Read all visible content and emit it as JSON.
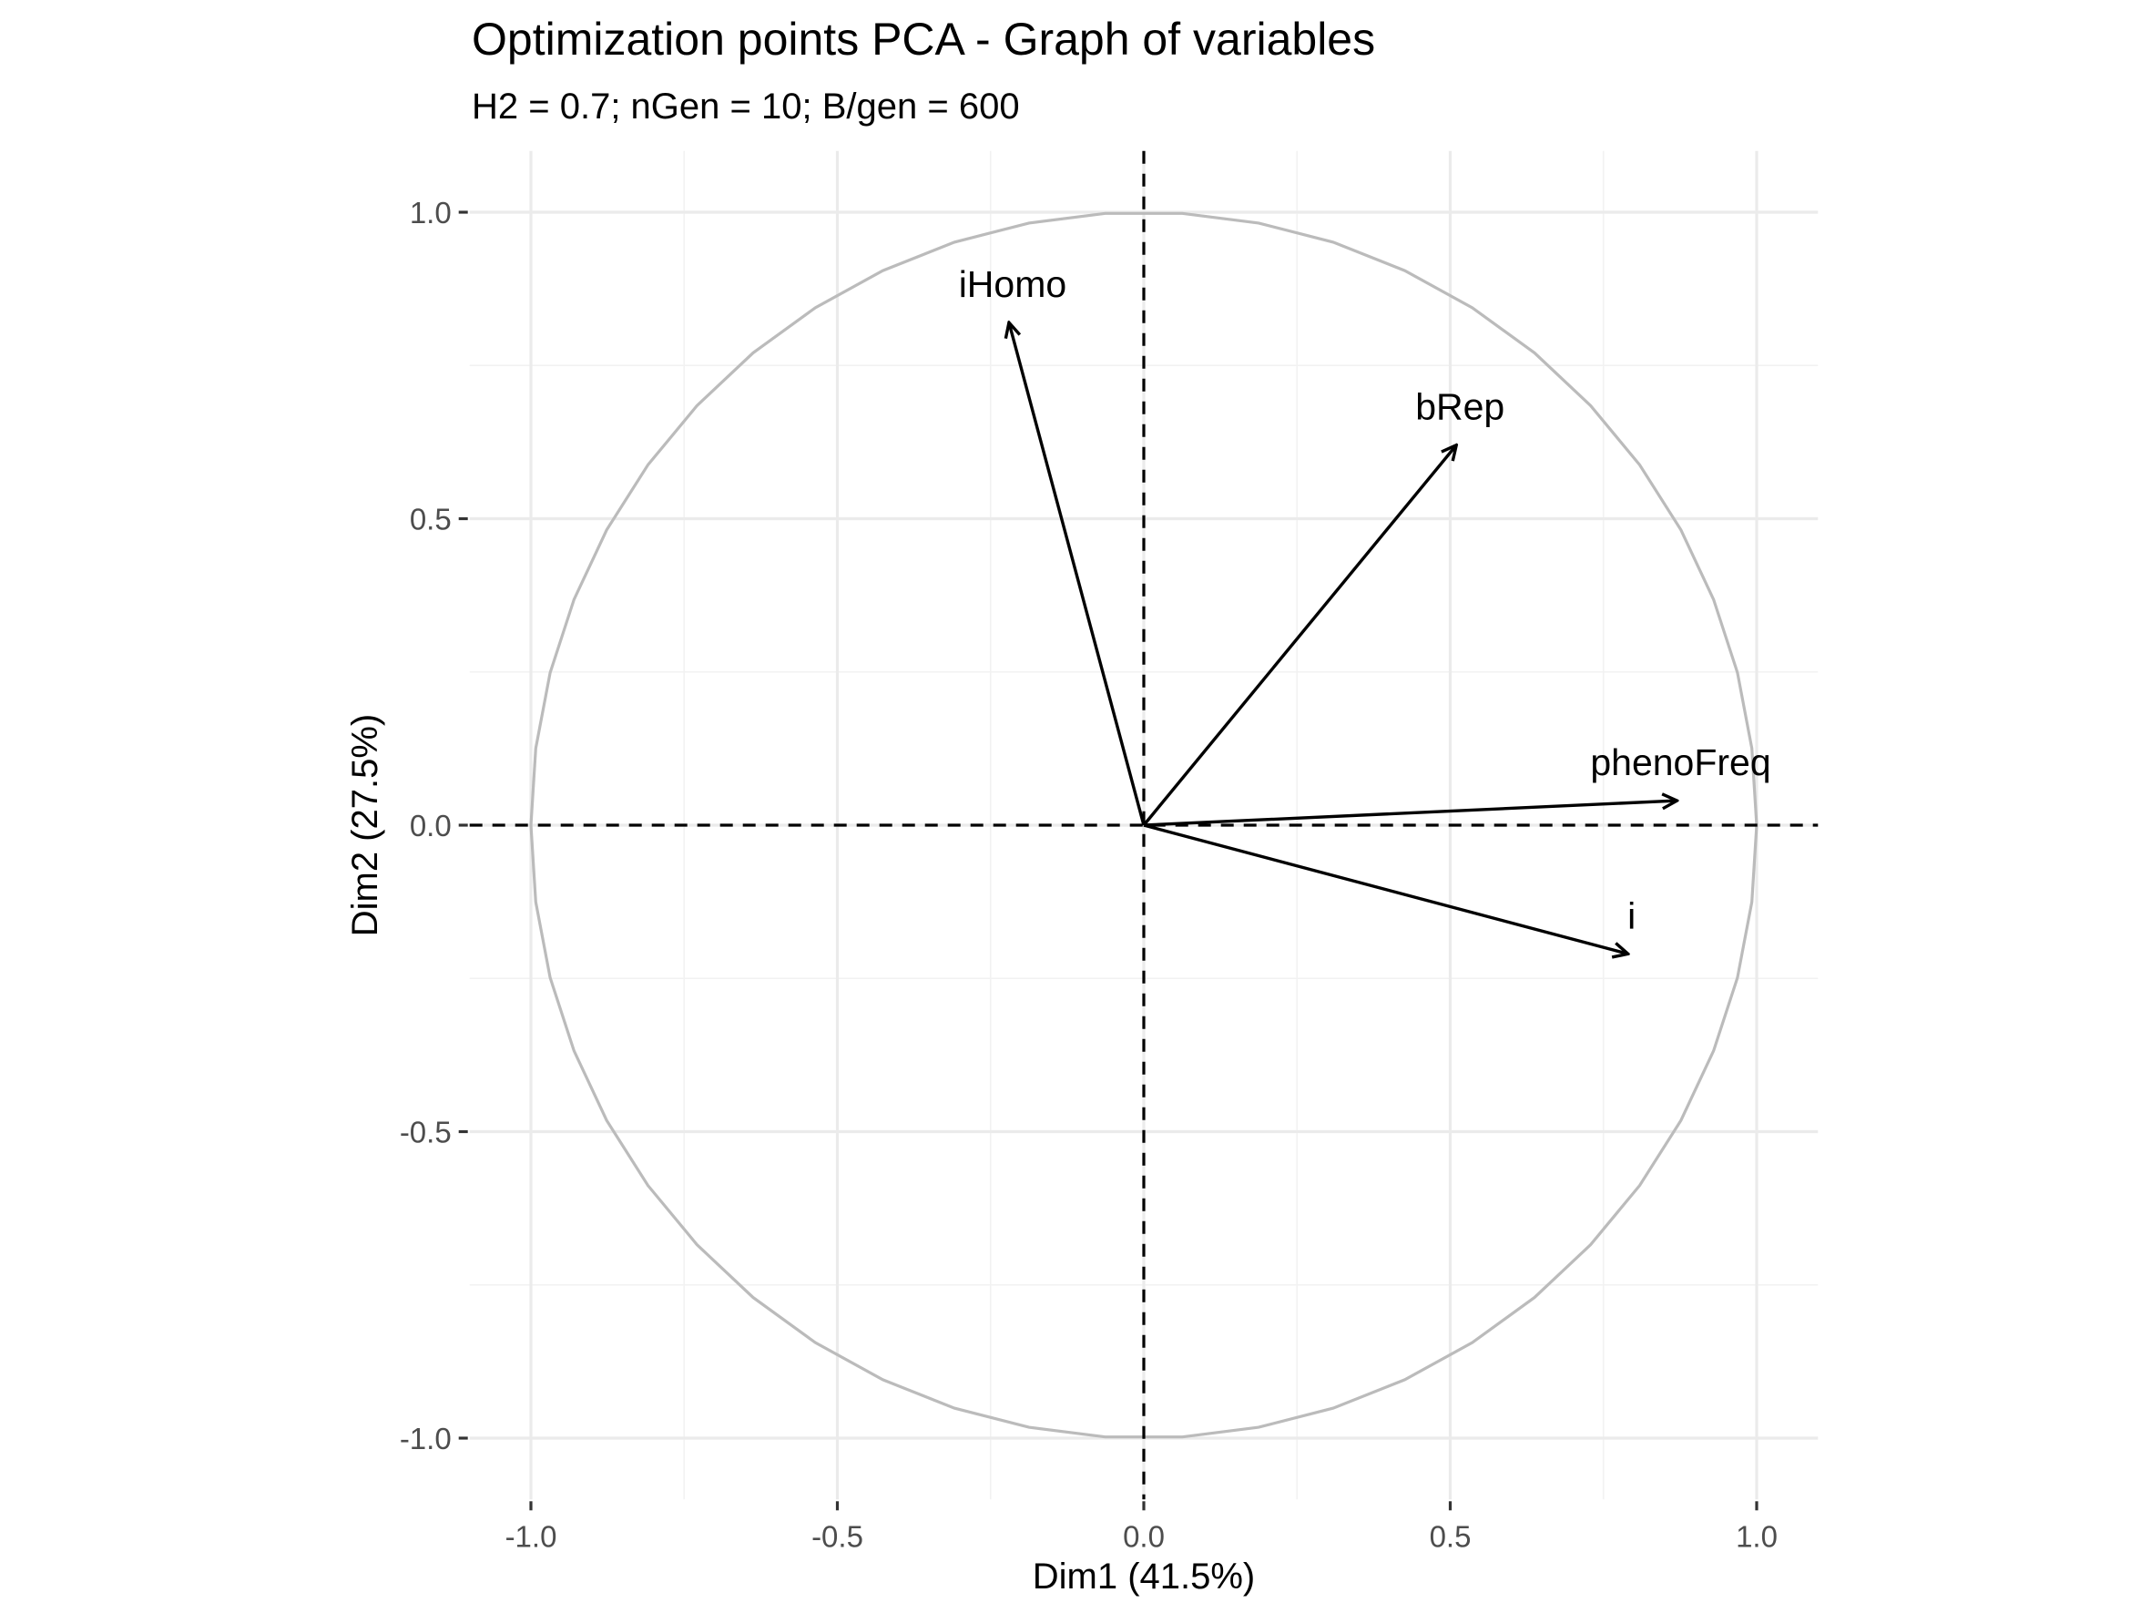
{
  "chart_data": {
    "type": "scatter",
    "title": "Optimization points PCA - Graph of variables",
    "subtitle": "H2 = 0.7; nGen = 10; B/gen = 600",
    "xlabel": "Dim1 (41.5%)",
    "ylabel": "Dim2 (27.5%)",
    "xlim": [
      -1.1,
      1.1
    ],
    "ylim": [
      -1.1,
      1.1
    ],
    "x_ticks": [
      -1.0,
      -0.5,
      0.0,
      0.5,
      1.0
    ],
    "y_ticks": [
      -1.0,
      -0.5,
      0.0,
      0.5,
      1.0
    ],
    "x_tick_labels": [
      "-1.0",
      "-0.5",
      "0.0",
      "0.5",
      "1.0"
    ],
    "y_tick_labels": [
      "-1.0",
      "-0.5",
      "0.0",
      "0.5",
      "1.0"
    ],
    "grid": true,
    "unit_circle": true,
    "reference_lines": [
      0.0
    ],
    "variables": [
      {
        "name": "iHomo",
        "x": -0.22,
        "y": 0.82
      },
      {
        "name": "bRep",
        "x": 0.51,
        "y": 0.62
      },
      {
        "name": "phenoFreq",
        "x": 0.87,
        "y": 0.04
      },
      {
        "name": "i",
        "x": 0.79,
        "y": -0.21
      }
    ]
  }
}
